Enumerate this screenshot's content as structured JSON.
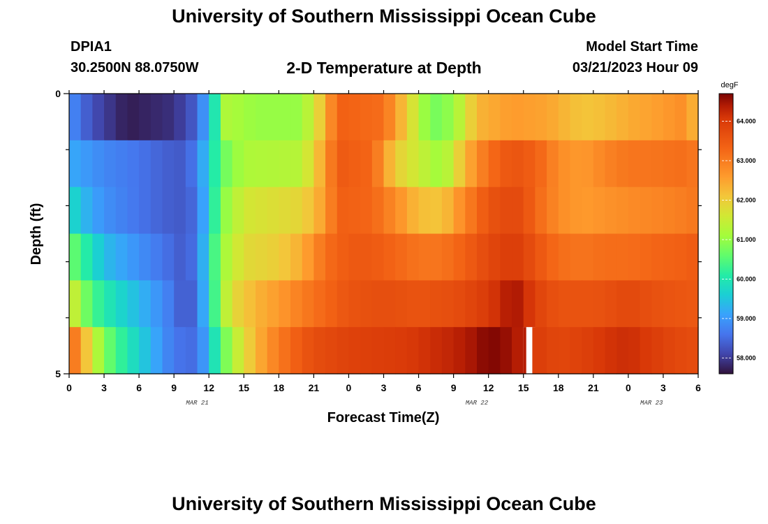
{
  "page": {
    "main_title": "University of Southern Mississippi Ocean Cube",
    "bottom_title": "University of Southern Mississippi Ocean Cube",
    "station_id": "DPIA1",
    "station_coords": "30.2500N  88.0750W",
    "plot_title": "2-D Temperature at Depth",
    "model_start_label": "Model Start Time",
    "model_start_time": "03/21/2023 Hour 09"
  },
  "chart_data": {
    "type": "heatmap",
    "title": "2-D Temperature at Depth",
    "xlabel": "Forecast Time(Z)",
    "ylabel": "Depth (ft)",
    "x_hours": [
      0,
      54
    ],
    "x_ticks": [
      "0",
      "3",
      "6",
      "9",
      "12",
      "15",
      "18",
      "21",
      "0",
      "3",
      "6",
      "9",
      "12",
      "15",
      "18",
      "21",
      "0",
      "3",
      "6"
    ],
    "date_labels": [
      {
        "hour": 11,
        "text": "MAR 21"
      },
      {
        "hour": 35,
        "text": "MAR 22"
      },
      {
        "hour": 50,
        "text": "MAR 23"
      }
    ],
    "y_range": [
      0,
      5
    ],
    "y_ticks": [
      {
        "value": 0,
        "label": "0"
      },
      {
        "value": 5,
        "label": "5"
      }
    ],
    "y_minor_ticks": [
      1,
      2,
      3,
      4
    ],
    "colorbar": {
      "unit": "degF",
      "min": 57.6,
      "max": 64.7,
      "ticks": [
        "58.000",
        "59.000",
        "60.000",
        "61.000",
        "62.000",
        "63.000",
        "64.000"
      ]
    },
    "missing_cell": {
      "layer": 5,
      "hour": 39
    },
    "temperature_control_points": [
      [
        [
          0,
          58.9
        ],
        [
          2,
          58.2
        ],
        [
          5,
          57.7
        ],
        [
          9,
          57.9
        ],
        [
          11,
          58.4
        ],
        [
          12,
          59.4
        ],
        [
          13.5,
          61.2
        ],
        [
          16,
          61.0
        ],
        [
          20,
          61.0
        ],
        [
          22,
          62.3
        ],
        [
          23,
          63.4
        ],
        [
          27,
          63.2
        ],
        [
          29,
          62.0
        ],
        [
          31,
          60.7
        ],
        [
          33,
          61.0
        ],
        [
          35,
          62.3
        ],
        [
          38,
          62.6
        ],
        [
          41,
          62.5
        ],
        [
          44,
          62.1
        ],
        [
          46,
          62.2
        ],
        [
          48,
          62.4
        ],
        [
          51,
          62.6
        ],
        [
          53,
          62.8
        ],
        [
          54,
          62.0
        ]
      ],
      [
        [
          0,
          59.2
        ],
        [
          3,
          58.8
        ],
        [
          6,
          58.6
        ],
        [
          8,
          58.4
        ],
        [
          10,
          58.3
        ],
        [
          11,
          58.8
        ],
        [
          12,
          59.6
        ],
        [
          13,
          60.6
        ],
        [
          15,
          61.2
        ],
        [
          20,
          61.3
        ],
        [
          22,
          62.6
        ],
        [
          23,
          63.5
        ],
        [
          26,
          63.3
        ],
        [
          28,
          62.0
        ],
        [
          30,
          61.5
        ],
        [
          32,
          61.0
        ],
        [
          34,
          62.3
        ],
        [
          36,
          63.2
        ],
        [
          38,
          63.6
        ],
        [
          40,
          63.4
        ],
        [
          42,
          62.8
        ],
        [
          44,
          62.6
        ],
        [
          46,
          62.9
        ],
        [
          48,
          63.1
        ],
        [
          50,
          63.1
        ],
        [
          53,
          63.2
        ],
        [
          54,
          63.0
        ]
      ],
      [
        [
          0,
          59.9
        ],
        [
          1,
          59.4
        ],
        [
          3,
          58.9
        ],
        [
          6,
          58.6
        ],
        [
          8,
          58.4
        ],
        [
          10,
          58.3
        ],
        [
          11,
          58.6
        ],
        [
          12,
          59.6
        ],
        [
          13,
          60.8
        ],
        [
          15,
          61.6
        ],
        [
          20,
          61.9
        ],
        [
          22,
          62.6
        ],
        [
          23,
          63.4
        ],
        [
          26,
          63.3
        ],
        [
          28,
          62.8
        ],
        [
          30,
          62.2
        ],
        [
          32,
          62.1
        ],
        [
          34,
          62.9
        ],
        [
          36,
          63.6
        ],
        [
          38,
          63.8
        ],
        [
          39,
          63.7
        ],
        [
          40,
          63.3
        ],
        [
          42,
          62.8
        ],
        [
          44,
          62.6
        ],
        [
          46,
          62.7
        ],
        [
          48,
          62.8
        ],
        [
          51,
          62.9
        ],
        [
          53,
          63.0
        ],
        [
          54,
          63.1
        ]
      ],
      [
        [
          0,
          60.8
        ],
        [
          1,
          60.3
        ],
        [
          3,
          59.4
        ],
        [
          6,
          58.9
        ],
        [
          8,
          58.6
        ],
        [
          10,
          58.3
        ],
        [
          11,
          58.7
        ],
        [
          12,
          59.8
        ],
        [
          13,
          61.0
        ],
        [
          15,
          61.8
        ],
        [
          18,
          62.0
        ],
        [
          20,
          62.4
        ],
        [
          22,
          63.2
        ],
        [
          24,
          63.5
        ],
        [
          26,
          63.5
        ],
        [
          28,
          63.3
        ],
        [
          30,
          63.1
        ],
        [
          32,
          63.1
        ],
        [
          34,
          63.4
        ],
        [
          36,
          63.8
        ],
        [
          38,
          64.0
        ],
        [
          39,
          63.9
        ],
        [
          40,
          63.6
        ],
        [
          42,
          63.2
        ],
        [
          44,
          63.1
        ],
        [
          46,
          63.2
        ],
        [
          48,
          63.2
        ],
        [
          50,
          63.3
        ],
        [
          53,
          63.4
        ],
        [
          54,
          63.5
        ]
      ],
      [
        [
          0,
          61.8
        ],
        [
          1,
          61.0
        ],
        [
          2,
          60.4
        ],
        [
          4,
          59.8
        ],
        [
          7,
          59.1
        ],
        [
          9,
          58.6
        ],
        [
          10,
          58.2
        ],
        [
          11,
          58.6
        ],
        [
          12,
          59.7
        ],
        [
          13,
          61.0
        ],
        [
          14,
          61.8
        ],
        [
          16,
          62.3
        ],
        [
          18,
          62.6
        ],
        [
          20,
          63.0
        ],
        [
          22,
          63.3
        ],
        [
          24,
          63.6
        ],
        [
          27,
          63.7
        ],
        [
          30,
          63.6
        ],
        [
          33,
          63.7
        ],
        [
          35,
          63.9
        ],
        [
          37,
          64.2
        ],
        [
          38,
          64.5
        ],
        [
          39,
          64.3
        ],
        [
          40,
          63.9
        ],
        [
          42,
          63.6
        ],
        [
          45,
          63.6
        ],
        [
          48,
          63.8
        ],
        [
          51,
          63.6
        ],
        [
          54,
          63.5
        ]
      ],
      [
        [
          0,
          63.4
        ],
        [
          1,
          62.6
        ],
        [
          2,
          61.6
        ],
        [
          3,
          60.8
        ],
        [
          5,
          60.0
        ],
        [
          7,
          59.3
        ],
        [
          9,
          58.6
        ],
        [
          11,
          58.5
        ],
        [
          12,
          59.4
        ],
        [
          13,
          60.5
        ],
        [
          15,
          61.8
        ],
        [
          17,
          62.7
        ],
        [
          19,
          63.3
        ],
        [
          21,
          63.7
        ],
        [
          24,
          63.9
        ],
        [
          28,
          64.0
        ],
        [
          30,
          64.1
        ],
        [
          33,
          64.3
        ],
        [
          35,
          64.5
        ],
        [
          36,
          64.7
        ],
        [
          38,
          64.5
        ],
        [
          40,
          64.0
        ],
        [
          42,
          63.8
        ],
        [
          44,
          63.9
        ],
        [
          46,
          64.1
        ],
        [
          48,
          64.2
        ],
        [
          50,
          64.0
        ],
        [
          52,
          63.8
        ],
        [
          54,
          63.7
        ]
      ]
    ]
  }
}
